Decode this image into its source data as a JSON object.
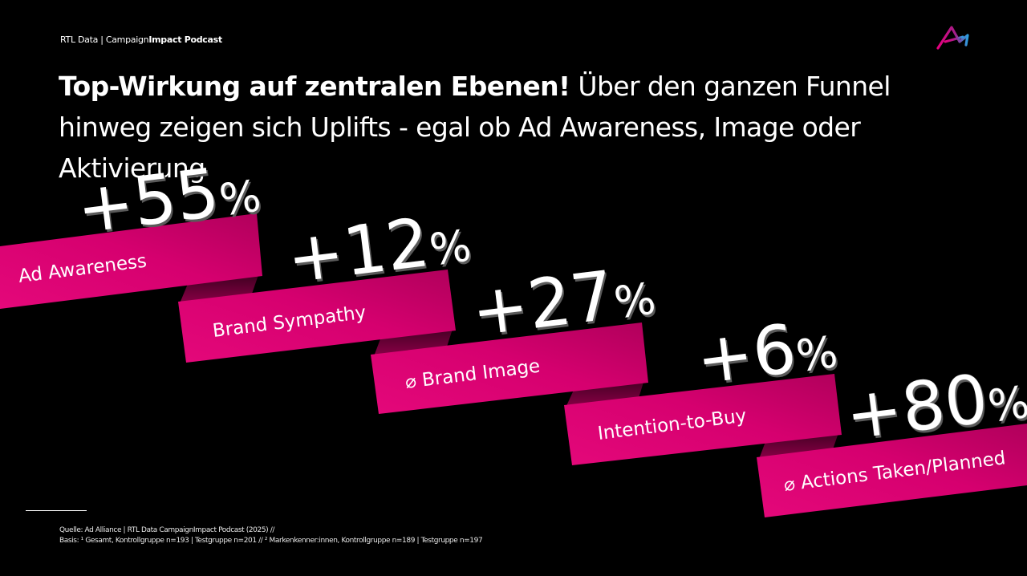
{
  "header": {
    "source_label_regular": "RTL Data | Campaign",
    "source_label_bold": "Impact Podcast"
  },
  "headline": {
    "bold": "Top-Wirkung auf zentralen Ebenen!",
    "regular": " Über den ganzen Funnel hinweg zeigen sich Uplifts - egal ob Ad Awareness, Image oder Aktivierung"
  },
  "uplifts": [
    {
      "label": "Ad Awareness",
      "value": "+55",
      "unit": "%"
    },
    {
      "label": "Brand Sympathy",
      "value": "+12",
      "unit": "%"
    },
    {
      "label": "⌀ Brand Image",
      "value": "+27",
      "unit": "%"
    },
    {
      "label": "Intention-to-Buy",
      "value": "+6",
      "unit": "%"
    },
    {
      "label": "⌀ Actions Taken/Planned",
      "value": "+80",
      "unit": "%"
    }
  ],
  "colors": {
    "ribbon": "#d4006e",
    "ribbon_dark": "#8a0046",
    "background": "#000000"
  },
  "footer": {
    "line1": "Quelle: Ad Alliance | RTL Data CampaignImpact Podcast (2025) //",
    "line2": "Basis: ¹ Gesamt, Kontrollgruppe n=193 | Testgruppe n=201 // ² Markenkenner:innen, Kontrollgruppe n=189 | Testgruppe n=197"
  },
  "icons": {
    "logo": "ad-alliance-logo-icon"
  }
}
